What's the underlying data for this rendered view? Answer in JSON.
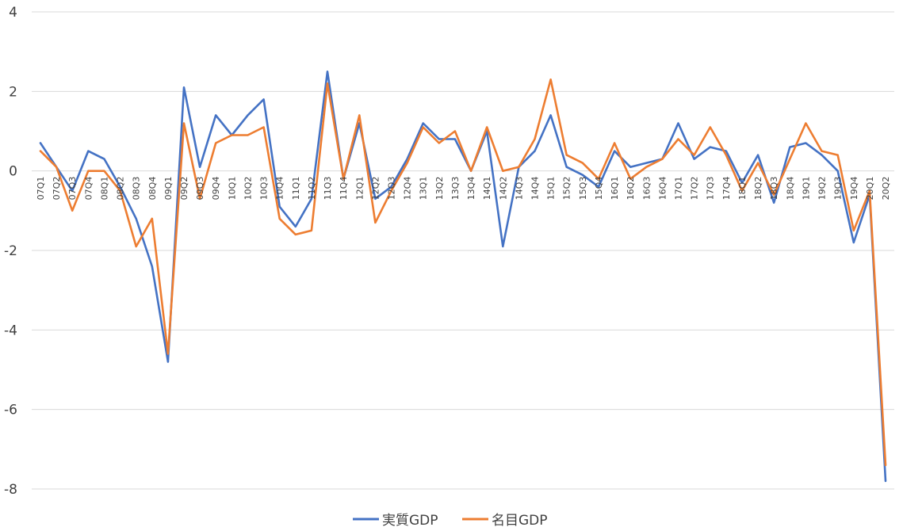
{
  "chart_data": {
    "type": "line",
    "title": "",
    "xlabel": "",
    "ylabel": "",
    "ylim": [
      -8,
      4
    ],
    "yticks": [
      4,
      2,
      0,
      -2,
      -4,
      -6,
      -8
    ],
    "grid": true,
    "legend_position": "bottom",
    "categories": [
      "07Q1",
      "07Q2",
      "07Q3",
      "07Q4",
      "08Q1",
      "08Q2",
      "08Q3",
      "08Q4",
      "09Q1",
      "09Q2",
      "09Q3",
      "09Q4",
      "10Q1",
      "10Q2",
      "10Q3",
      "10Q4",
      "11Q1",
      "11Q2",
      "11Q3",
      "11Q4",
      "12Q1",
      "12Q2",
      "12Q3",
      "12Q4",
      "13Q1",
      "13Q2",
      "13Q3",
      "13Q4",
      "14Q1",
      "14Q2",
      "14Q3",
      "14Q4",
      "15Q1",
      "15Q2",
      "15Q3",
      "15Q4",
      "16Q1",
      "16Q2",
      "16Q3",
      "16Q4",
      "17Q1",
      "17Q2",
      "17Q3",
      "17Q4",
      "18Q1",
      "18Q2",
      "18Q3",
      "18Q4",
      "19Q1",
      "19Q2",
      "19Q3",
      "19Q4",
      "20Q1",
      "20Q2"
    ],
    "series": [
      {
        "name": "実質GDP",
        "color": "#4472C4",
        "values": [
          0.7,
          0.1,
          -0.5,
          0.5,
          0.3,
          -0.4,
          -1.2,
          -2.4,
          -4.8,
          2.1,
          0.1,
          1.4,
          0.9,
          1.4,
          1.8,
          -0.9,
          -1.4,
          -0.7,
          2.5,
          -0.2,
          1.2,
          -0.7,
          -0.4,
          0.3,
          1.2,
          0.8,
          0.8,
          0.0,
          1.0,
          -1.9,
          0.1,
          0.5,
          1.4,
          0.1,
          -0.1,
          -0.4,
          0.5,
          0.1,
          0.2,
          0.3,
          1.2,
          0.3,
          0.6,
          0.5,
          -0.3,
          0.4,
          -0.8,
          0.6,
          0.7,
          0.4,
          0.0,
          -1.8,
          -0.6,
          -7.8
        ]
      },
      {
        "name": "名目GDP",
        "color": "#ED7D31",
        "values": [
          0.5,
          0.1,
          -1.0,
          0.0,
          0.0,
          -0.5,
          -1.9,
          -1.2,
          -4.6,
          1.2,
          -0.7,
          0.7,
          0.9,
          0.9,
          1.1,
          -1.2,
          -1.6,
          -1.5,
          2.2,
          -0.2,
          1.4,
          -1.3,
          -0.5,
          0.2,
          1.1,
          0.7,
          1.0,
          0.0,
          1.1,
          0.0,
          0.1,
          0.8,
          2.3,
          0.4,
          0.2,
          -0.2,
          0.7,
          -0.2,
          0.1,
          0.3,
          0.8,
          0.4,
          1.1,
          0.4,
          -0.5,
          0.2,
          -0.6,
          0.3,
          1.2,
          0.5,
          0.4,
          -1.5,
          -0.5,
          -7.4
        ]
      }
    ]
  }
}
